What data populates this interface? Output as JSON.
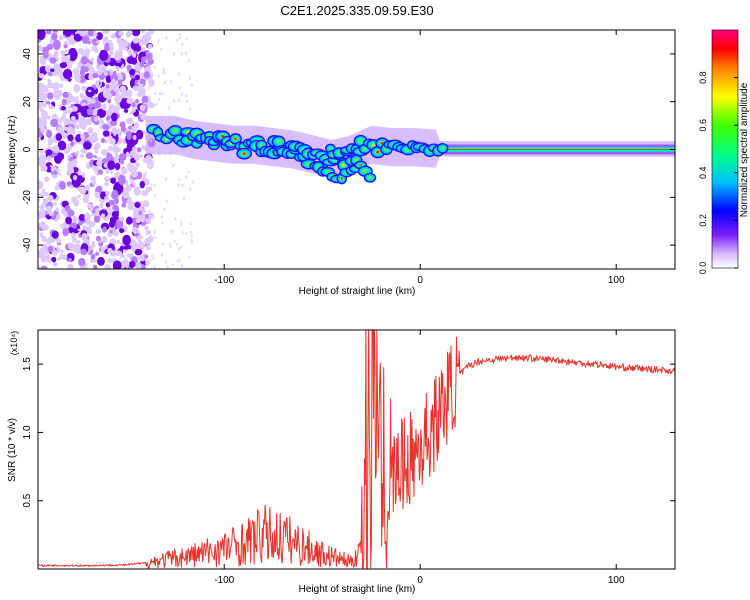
{
  "title": "C2E1.2025.335.09.59.E30",
  "chart_data": [
    {
      "type": "heatmap",
      "xlabel": "Height of straight line (km)",
      "ylabel": "Frequency (Hz)",
      "xlim": [
        -195,
        130
      ],
      "ylim": [
        -50,
        50
      ],
      "x_ticks": [
        -100,
        0,
        100
      ],
      "x_tick_labels": [
        "-100",
        "0",
        "100"
      ],
      "y_ticks": [
        -40,
        -20,
        0,
        20,
        40
      ],
      "y_tick_labels": [
        "-40",
        "-20",
        "0",
        "20",
        "40"
      ],
      "colorbar": {
        "label": "Normalized spectral amplitude",
        "range": [
          0,
          1
        ],
        "ticks": [
          0.0,
          0.2,
          0.4,
          0.6,
          0.8
        ],
        "tick_labels": [
          "0.0",
          "0.2",
          "0.4",
          "0.6",
          "0.8"
        ]
      },
      "trace": {
        "x": [
          -137,
          -125,
          -115,
          -105,
          -95,
          -85,
          -75,
          -65,
          -55,
          -45,
          -35,
          -25,
          -15,
          -5,
          5,
          15,
          40,
          70,
          100,
          130
        ],
        "y": [
          6,
          6,
          4,
          3,
          2,
          2,
          1,
          0,
          -2,
          -4,
          -2,
          2,
          1,
          1,
          0.5,
          0,
          0,
          0,
          0,
          0
        ]
      },
      "side_branch": {
        "x": [
          -50,
          -45,
          -40,
          -35,
          -30,
          -25
        ],
        "y": [
          -8,
          -11,
          -12,
          -9,
          -6,
          -13
        ]
      }
    },
    {
      "type": "line",
      "xlabel": "Height of straight line (km)",
      "ylabel": "SNR (10 * v/v)",
      "y_multiplier": "(x10⁴)",
      "xlim": [
        -195,
        130
      ],
      "ylim": [
        0,
        17500
      ],
      "x_ticks": [
        -100,
        0,
        100
      ],
      "x_tick_labels": [
        "-100",
        "0",
        "100"
      ],
      "y_ticks": [
        5000,
        10000,
        15000
      ],
      "y_tick_labels": [
        "0.5",
        "1.0",
        "1.5"
      ],
      "series": [
        {
          "name": "SNR",
          "color": "#e8322b",
          "x": [
            -195,
            -170,
            -150,
            -140,
            -130,
            -120,
            -110,
            -100,
            -90,
            -80,
            -70,
            -60,
            -50,
            -45,
            -40,
            -35,
            -30,
            -27,
            -24,
            -20,
            -15,
            -10,
            -5,
            0,
            5,
            10,
            15,
            20,
            25,
            30,
            40,
            50,
            60,
            70,
            80,
            90,
            100,
            110,
            120,
            130
          ],
          "y": [
            250,
            250,
            300,
            450,
            700,
            900,
            1200,
            1500,
            1900,
            2500,
            2300,
            1700,
            1100,
            900,
            700,
            500,
            1800,
            5000,
            8500,
            7000,
            6500,
            7500,
            8000,
            9000,
            10000,
            11500,
            13000,
            14200,
            14900,
            15200,
            15400,
            15500,
            15400,
            15300,
            15100,
            15000,
            14800,
            14700,
            14600,
            14500
          ]
        }
      ]
    }
  ]
}
